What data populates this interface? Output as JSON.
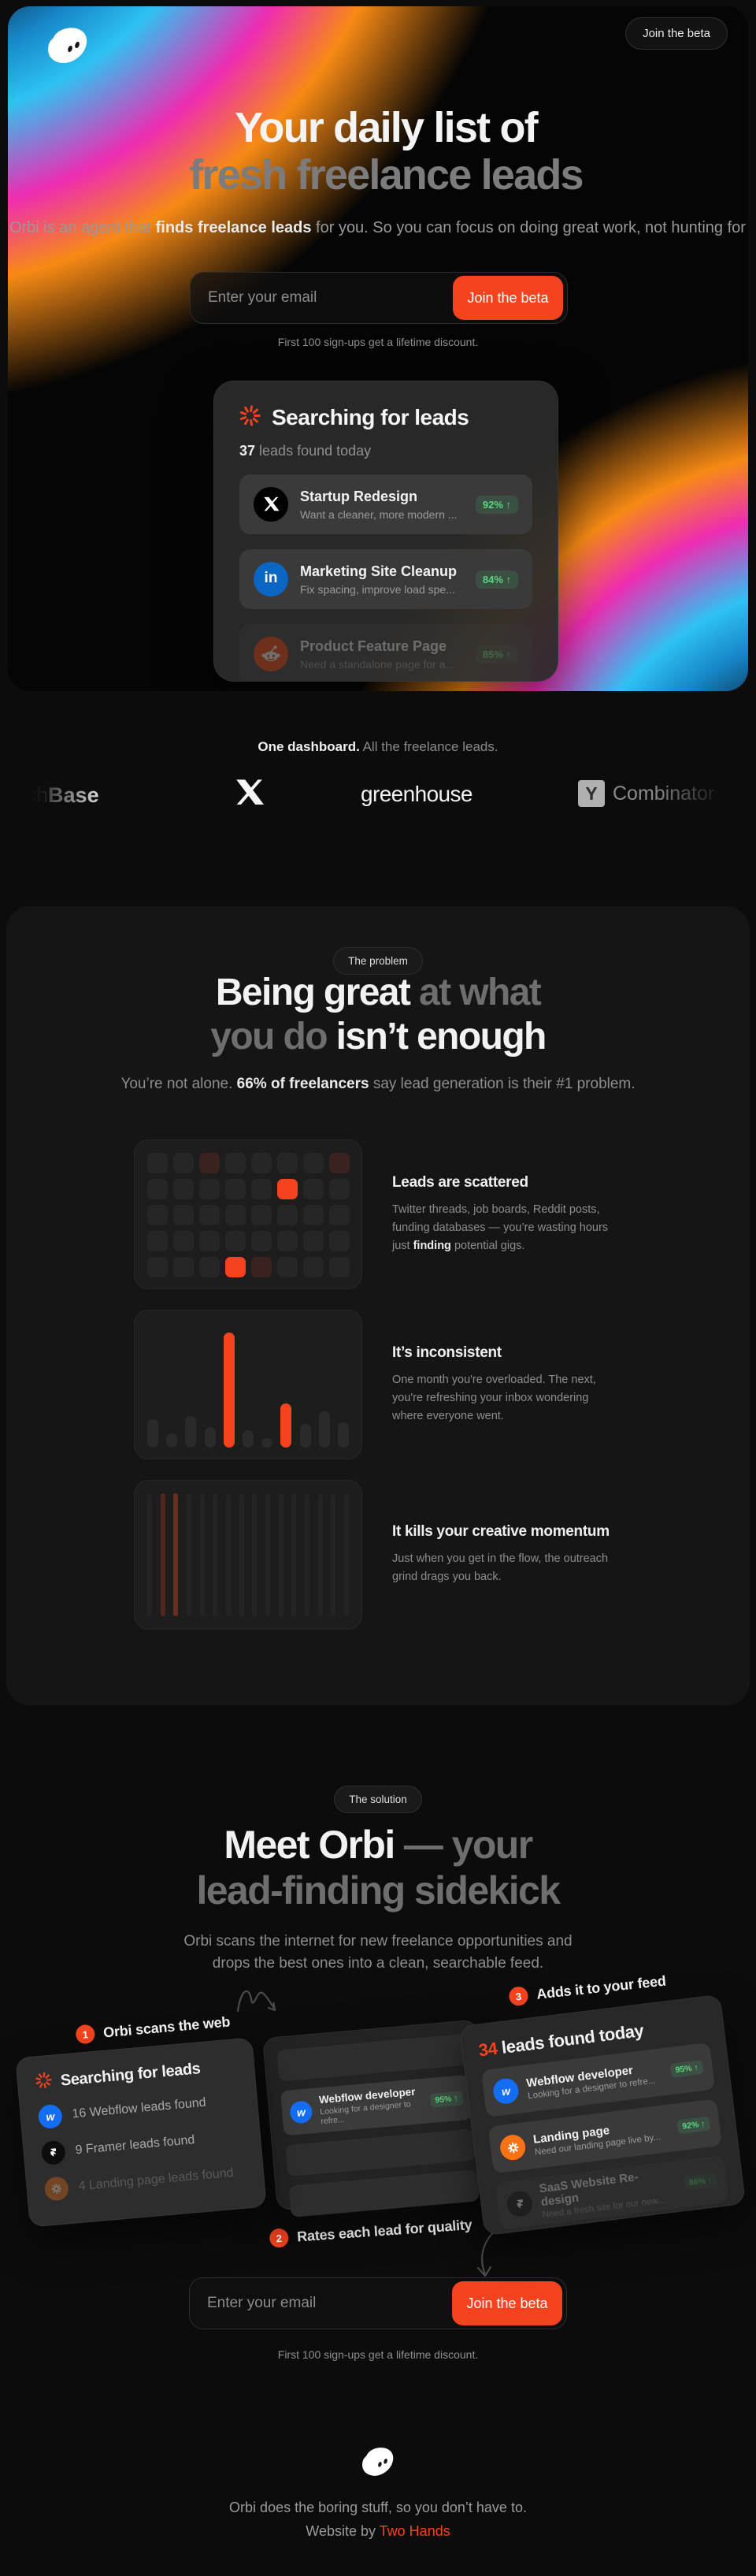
{
  "nav": {
    "join_button": "Join the beta"
  },
  "hero": {
    "title_line1": "Your daily list of",
    "title_line2": "fresh freelance leads",
    "subtitle_pre": "Orbi is an agent that ",
    "subtitle_bold": "finds freelance leads",
    "subtitle_post": " for you. So you can focus on doing great work, not hunting for it.",
    "email_placeholder": "Enter your email",
    "cta": "Join the beta",
    "note": "First 100 sign-ups get a lifetime discount."
  },
  "dashboard_card": {
    "title": "Searching for leads",
    "count": "37",
    "count_suffix": " leads found today",
    "leads": [
      {
        "source": "x",
        "title": "Startup Redesign",
        "desc": "Want a cleaner, more modern ...",
        "score": "92% ↑"
      },
      {
        "source": "linkedin",
        "title": "Marketing Site Cleanup",
        "desc": "Fix spacing, improve load spe...",
        "score": "84% ↑"
      },
      {
        "source": "reddit",
        "title": "Product Feature Page",
        "desc": "Need a standalone page for a...",
        "score": "85% ↑"
      }
    ]
  },
  "logo_strip": {
    "heading_bold": "One dashboard.",
    "heading_rest": " All the freelance leads.",
    "crunchbase_pre": "Crunch",
    "crunchbase_post": "Base",
    "greenhouse": "greenhouse",
    "ycombinator_letter": "Y",
    "ycombinator_text": "Combinator"
  },
  "problem": {
    "badge": "The problem",
    "title_w1": "Being great",
    "title_g1": " at what",
    "title_g2": "you do",
    "title_w2": " isn’t enough",
    "sub_pre": "You’re not alone. ",
    "sub_bold": "66% of freelancers",
    "sub_post": " say lead generation is their #1 problem.",
    "cards": [
      {
        "title": "Leads are scattered",
        "body_pre": "Twitter threads, job boards, Reddit posts, funding databases — you’re wasting hours just ",
        "body_bold": "finding",
        "body_post": " potential gigs."
      },
      {
        "title": "It’s inconsistent",
        "body_pre": "One month you're overloaded. The next, you're refreshing your inbox wondering where everyone went.",
        "body_bold": "",
        "body_post": ""
      },
      {
        "title": "It kills your creative momentum",
        "body_pre": "Just when you get in the flow, the outreach grind drags you back.",
        "body_bold": "",
        "body_post": ""
      }
    ],
    "graphics": {
      "heatmap": {
        "cols": 8,
        "rows": 5,
        "cells": {
          "2": "dim",
          "7": "dim",
          "13": "hot",
          "35": "hot",
          "36": "dim"
        }
      },
      "bars": {
        "heights": [
          36,
          18,
          40,
          26,
          146,
          22,
          12,
          56,
          30,
          46,
          32
        ],
        "red": [
          4,
          7
        ]
      },
      "stripes": {
        "count": 16,
        "red": {
          "1": 1,
          "2": 2
        }
      }
    }
  },
  "solution": {
    "badge": "The solution",
    "title_w": "Meet Orbi",
    "title_g1": " — your",
    "title_g2": "lead-finding sidekick",
    "sub": "Orbi scans the internet for new freelance opportunities and drops the best ones into a clean, searchable feed.",
    "steps": [
      {
        "n": "1",
        "label": "Orbi scans the web"
      },
      {
        "n": "2",
        "label": "Rates each lead for quality"
      },
      {
        "n": "3",
        "label": "Adds it to your feed"
      }
    ],
    "scan_card": {
      "title": "Searching for leads",
      "items": [
        {
          "source": "webflow",
          "text": "16 Webflow leads found"
        },
        {
          "source": "framer",
          "text": "9 Framer leads found"
        },
        {
          "source": "spark",
          "text": "4 Landing page leads found"
        }
      ]
    },
    "rate_card": {
      "lead": {
        "source": "webflow",
        "title": "Webflow developer",
        "desc": "Looking for a designer to refre...",
        "score": "95% ↑"
      }
    },
    "feed_card": {
      "count": "34",
      "count_suffix": " leads found today",
      "leads": [
        {
          "source": "webflow",
          "title": "Webflow developer",
          "desc": "Looking for a designer to refre...",
          "score": "95% ↑"
        },
        {
          "source": "spark",
          "title": "Landing page",
          "desc": "Need our landing page live by...",
          "score": "92% ↑"
        },
        {
          "source": "framer",
          "title": "SaaS Website Re-design",
          "desc": "Need a fresh site for our new...",
          "score": "86% ↑"
        }
      ]
    }
  },
  "signup": {
    "email_placeholder": "Enter your email",
    "cta": "Join the beta",
    "note": "First 100 sign-ups get a lifetime discount."
  },
  "footer": {
    "line1": "Orbi does the boring stuff, so you don’t have to.",
    "line2_pre": "Website by ",
    "line2_link": "Two Hands"
  },
  "colors": {
    "accent": "#f5431f",
    "green_badge": "#56d97e",
    "webflow_blue": "#146ef5",
    "linkedin_blue": "#0a66c2",
    "reddit_orange": "#ff4500",
    "spark_orange": "#f97316"
  }
}
